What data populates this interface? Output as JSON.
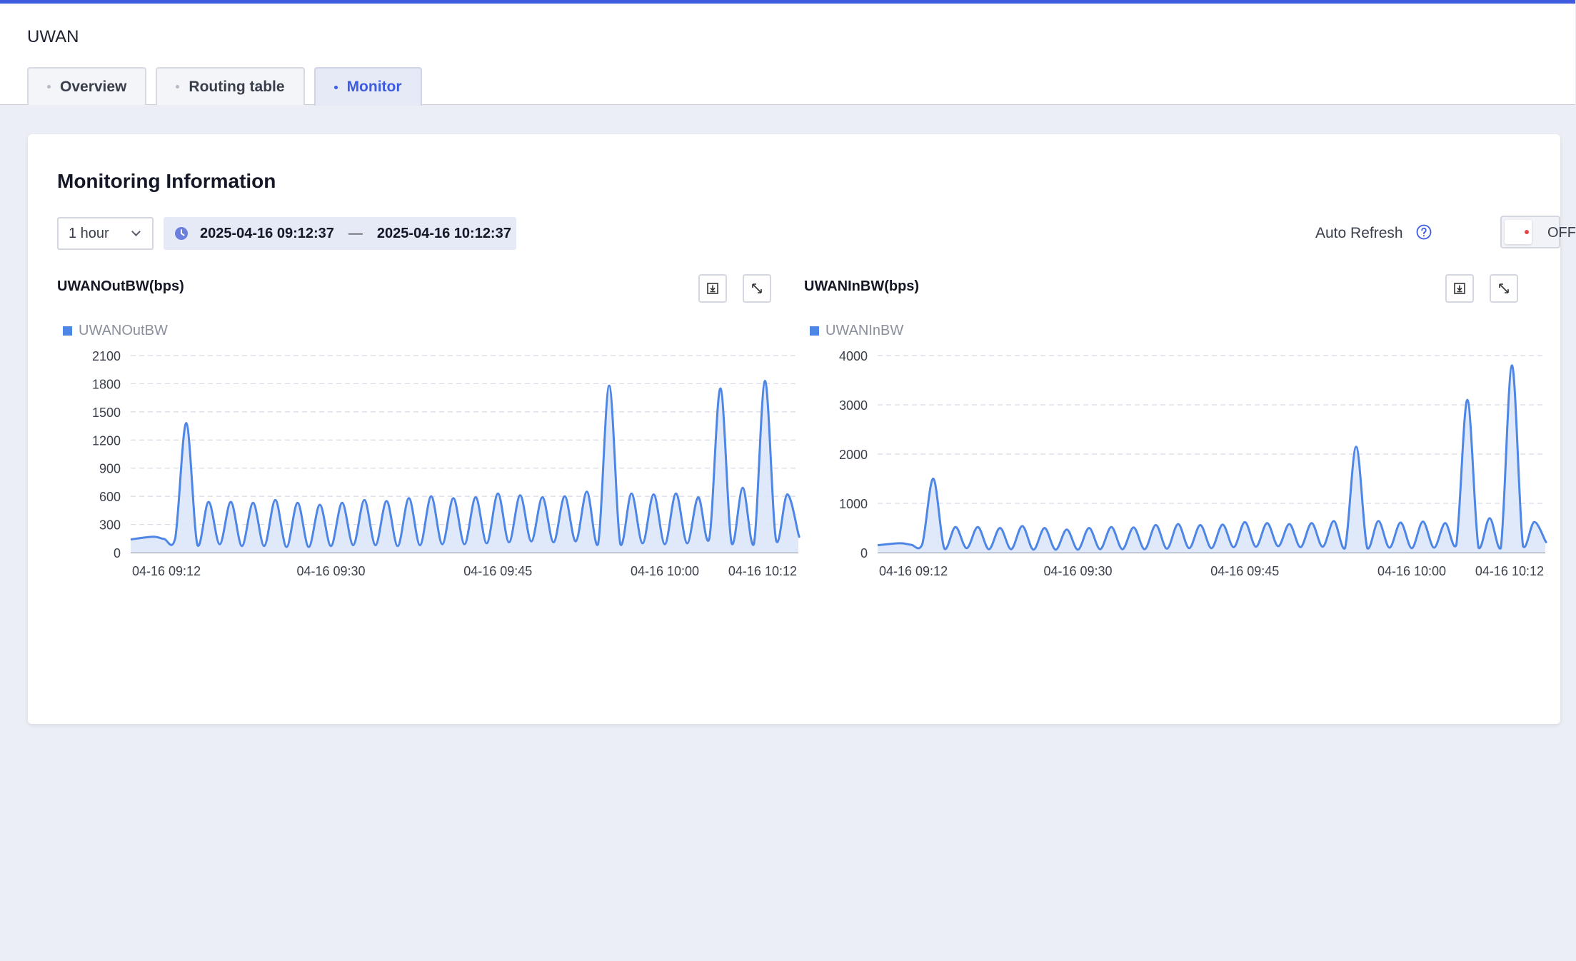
{
  "app": {
    "title": "UWAN"
  },
  "tabs": [
    {
      "label": "Overview",
      "active": false
    },
    {
      "label": "Routing table",
      "active": false
    },
    {
      "label": "Monitor",
      "active": true
    }
  ],
  "monitor": {
    "title": "Monitoring Information",
    "range_select": {
      "value": "1 hour"
    },
    "date_range": {
      "start": "2025-04-16 09:12:37",
      "separator": "—",
      "end": "2025-04-16 10:12:37"
    },
    "auto_refresh": {
      "label": "Auto Refresh",
      "state": "OFF",
      "on": false
    },
    "icons": {
      "clock": "clock-icon",
      "help": "help-icon",
      "download": "download-icon",
      "expand": "expand-icon",
      "dropdown": "chevron-down-icon"
    }
  },
  "colors": {
    "accent": "#3f5be0",
    "series": "#4e86e6",
    "area": "#dbe5f9",
    "toggle_dot": "#e24848"
  },
  "chart_data": [
    {
      "type": "area",
      "title": "UWANOutBW(bps)",
      "series": [
        {
          "name": "UWANOutBW"
        }
      ],
      "x_ticks": [
        "04-16 09:12",
        "04-16 09:30",
        "04-16 09:45",
        "04-16 10:00",
        "04-16 10:12"
      ],
      "x_range": [
        "09:12",
        "10:12"
      ],
      "y_ticks": [
        0,
        300,
        600,
        900,
        1200,
        1500,
        1800,
        2100
      ],
      "ylim": [
        0,
        2100
      ],
      "grid": true,
      "legend": "top-left",
      "peak_times": [
        "09:17",
        "09:19",
        "09:21",
        "09:23",
        "09:25",
        "09:27",
        "09:29",
        "09:31",
        "09:33",
        "09:35",
        "09:37",
        "09:39",
        "09:41",
        "09:43",
        "09:45",
        "09:47",
        "09:49",
        "09:51",
        "09:53",
        "09:55",
        "09:57",
        "09:59",
        "10:01",
        "10:03",
        "10:05",
        "10:07",
        "10:09",
        "10:11"
      ],
      "peak_values": [
        1380,
        540,
        540,
        530,
        560,
        530,
        510,
        530,
        560,
        550,
        580,
        600,
        580,
        590,
        630,
        610,
        590,
        600,
        650,
        1780,
        630,
        620,
        630,
        590,
        1750,
        690,
        1830,
        620
      ],
      "trough_values": [
        80,
        90,
        70,
        70,
        60,
        60,
        70,
        80,
        80,
        70,
        80,
        90,
        90,
        100,
        110,
        120,
        110,
        120,
        90,
        90,
        100,
        90,
        100,
        150,
        100,
        90,
        130,
        200
      ],
      "initial": [
        [
          "09:12",
          140
        ],
        [
          "09:14",
          170
        ],
        [
          "09:15",
          145
        ],
        [
          "09:16",
          150
        ]
      ]
    },
    {
      "type": "area",
      "title": "UWANInBW(bps)",
      "series": [
        {
          "name": "UWANInBW"
        }
      ],
      "x_ticks": [
        "04-16 09:12",
        "04-16 09:30",
        "04-16 09:45",
        "04-16 10:00",
        "04-16 10:12"
      ],
      "x_range": [
        "09:12",
        "10:12"
      ],
      "y_ticks": [
        0,
        1000,
        2000,
        3000,
        4000
      ],
      "ylim": [
        0,
        4000
      ],
      "grid": true,
      "legend": "top-left",
      "peak_times": [
        "09:17",
        "09:19",
        "09:21",
        "09:23",
        "09:25",
        "09:27",
        "09:29",
        "09:31",
        "09:33",
        "09:35",
        "09:37",
        "09:39",
        "09:41",
        "09:43",
        "09:45",
        "09:47",
        "09:49",
        "09:51",
        "09:53",
        "09:55",
        "09:57",
        "09:59",
        "10:01",
        "10:03",
        "10:05",
        "10:07",
        "10:09",
        "10:11"
      ],
      "peak_values": [
        1500,
        520,
        520,
        500,
        540,
        500,
        470,
        500,
        520,
        510,
        560,
        580,
        560,
        570,
        620,
        600,
        580,
        600,
        640,
        2150,
        640,
        610,
        630,
        600,
        3100,
        700,
        3800,
        620
      ],
      "trough_values": [
        80,
        90,
        70,
        70,
        60,
        60,
        60,
        70,
        70,
        70,
        80,
        90,
        90,
        110,
        120,
        130,
        110,
        120,
        90,
        90,
        100,
        90,
        100,
        150,
        100,
        90,
        130,
        240
      ],
      "initial": [
        [
          "09:12",
          150
        ],
        [
          "09:14",
          190
        ],
        [
          "09:15",
          160
        ],
        [
          "09:16",
          160
        ]
      ]
    }
  ]
}
